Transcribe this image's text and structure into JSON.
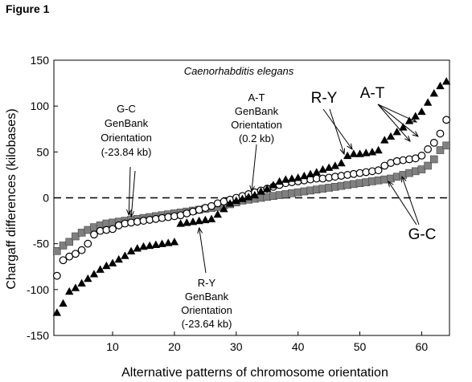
{
  "figure_label": "Figure 1",
  "chart_data": {
    "type": "scatter",
    "title": "Caenorhabditis elegans",
    "xlabel": "Alternative patterns of chromosome orientation",
    "ylabel": "Chargaff differences (kilobases)",
    "xlim": [
      0.5,
      64.5
    ],
    "ylim": [
      -150,
      150
    ],
    "x_ticks": [
      10,
      20,
      30,
      40,
      50,
      60
    ],
    "y_ticks": [
      -150,
      -100,
      -50,
      0,
      50,
      100,
      150
    ],
    "x_tick_labels": [
      "10",
      "20",
      "30",
      "40",
      "50",
      "60"
    ],
    "y_tick_labels": [
      "-150",
      "-100",
      "-50",
      "0",
      "50",
      "100",
      "150"
    ],
    "reference_line": {
      "y": 0,
      "style": "dashed"
    },
    "grid": false,
    "series": [
      {
        "name": "A-T",
        "marker": "triangle",
        "color": "#000000",
        "x": [
          1,
          2,
          3,
          4,
          5,
          6,
          7,
          8,
          9,
          10,
          11,
          12,
          13,
          14,
          15,
          16,
          17,
          18,
          19,
          20,
          21,
          22,
          23,
          24,
          25,
          26,
          27,
          28,
          29,
          30,
          31,
          32,
          33,
          34,
          35,
          36,
          37,
          38,
          39,
          40,
          41,
          42,
          43,
          44,
          45,
          46,
          47,
          48,
          49,
          50,
          51,
          52,
          53,
          54,
          55,
          56,
          57,
          58,
          59,
          60,
          61,
          62,
          63,
          64
        ],
        "values": [
          -125,
          -115,
          -102,
          -98,
          -93,
          -88,
          -83,
          -78,
          -74,
          -71,
          -67,
          -63,
          -58,
          -55,
          -53,
          -52,
          -51,
          -50,
          -49,
          -48,
          -28,
          -27,
          -26,
          -25,
          -24,
          -23,
          -18,
          -12,
          -6,
          -3,
          -1,
          1,
          3,
          7,
          10,
          14,
          18,
          20,
          21,
          22,
          24,
          26,
          28,
          31,
          33,
          35,
          38,
          46,
          48,
          48,
          49,
          50,
          52,
          63,
          67,
          72,
          77,
          84,
          89,
          94,
          104,
          114,
          122,
          127
        ]
      },
      {
        "name": "R-Y",
        "marker": "open-circle",
        "color": "#000000",
        "x": [
          1,
          2,
          3,
          4,
          5,
          6,
          7,
          8,
          9,
          10,
          11,
          12,
          13,
          14,
          15,
          16,
          17,
          18,
          19,
          20,
          21,
          22,
          23,
          24,
          25,
          26,
          27,
          28,
          29,
          30,
          31,
          32,
          33,
          34,
          35,
          36,
          37,
          38,
          39,
          40,
          41,
          42,
          43,
          44,
          45,
          46,
          47,
          48,
          49,
          50,
          51,
          52,
          53,
          54,
          55,
          56,
          57,
          58,
          59,
          60,
          61,
          62,
          63,
          64
        ],
        "values": [
          -85,
          -68,
          -64,
          -61,
          -57,
          -50,
          -40,
          -36,
          -35,
          -34,
          -30,
          -28,
          -27,
          -26,
          -25,
          -24,
          -23,
          -22,
          -21,
          -20,
          -19,
          -17,
          -15,
          -13,
          -11,
          -9,
          -6,
          -4,
          -2,
          0,
          2,
          4,
          6,
          8,
          10,
          12,
          14,
          16,
          17,
          18,
          19,
          20,
          21,
          21,
          22,
          23,
          24,
          25,
          26,
          27,
          28,
          29,
          30,
          35,
          38,
          40,
          41,
          42,
          43,
          46,
          53,
          60,
          70,
          85
        ]
      },
      {
        "name": "G-C",
        "marker": "filled-square",
        "color": "#808080",
        "x": [
          1,
          2,
          3,
          4,
          5,
          6,
          7,
          8,
          9,
          10,
          11,
          12,
          13,
          14,
          15,
          16,
          17,
          18,
          19,
          20,
          21,
          22,
          23,
          24,
          25,
          26,
          27,
          28,
          29,
          30,
          31,
          32,
          33,
          34,
          35,
          36,
          37,
          38,
          39,
          40,
          41,
          42,
          43,
          44,
          45,
          46,
          47,
          48,
          49,
          50,
          51,
          52,
          53,
          54,
          55,
          56,
          57,
          58,
          59,
          60,
          61,
          62,
          63,
          64
        ],
        "values": [
          -58,
          -52,
          -48,
          -42,
          -38,
          -35,
          -32,
          -30,
          -28,
          -27,
          -26,
          -25,
          -24,
          -23,
          -22,
          -21,
          -20,
          -19,
          -18,
          -17,
          -16,
          -15,
          -14,
          -13,
          -12,
          -11,
          -10,
          -8,
          -7,
          -5,
          -3,
          -2,
          -1,
          0,
          1,
          2,
          3,
          4,
          5,
          6,
          7,
          8,
          9,
          10,
          11,
          12,
          13,
          14,
          15,
          16,
          17,
          18,
          19,
          20,
          21,
          23,
          25,
          27,
          29,
          31,
          35,
          42,
          52,
          57
        ]
      }
    ],
    "annotations": [
      {
        "id": "gc_genbank",
        "lines": [
          "G-C",
          "GenBank",
          "Orientation",
          "(-23.84 kb)"
        ],
        "target_x": 12.5,
        "target_y": -24
      },
      {
        "id": "at_genbank",
        "lines": [
          "A-T",
          "GenBank",
          "Orientation",
          "(0.2 kb)"
        ],
        "target_x": 32.5,
        "target_y": 0.2
      },
      {
        "id": "ry_genbank",
        "lines": [
          "R-Y",
          "GenBank",
          "Orientation",
          "(-23.64 kb)"
        ],
        "target_x": 24,
        "target_y": -24
      },
      {
        "id": "ry_label",
        "lines": [
          "R-Y"
        ],
        "target_x": 49,
        "target_y": 45
      },
      {
        "id": "at_label",
        "lines": [
          "A-T"
        ],
        "target_x": 59,
        "target_y": 80
      },
      {
        "id": "gc_label",
        "lines": [
          "G-C"
        ],
        "target_x": 54,
        "target_y": 18
      }
    ]
  }
}
